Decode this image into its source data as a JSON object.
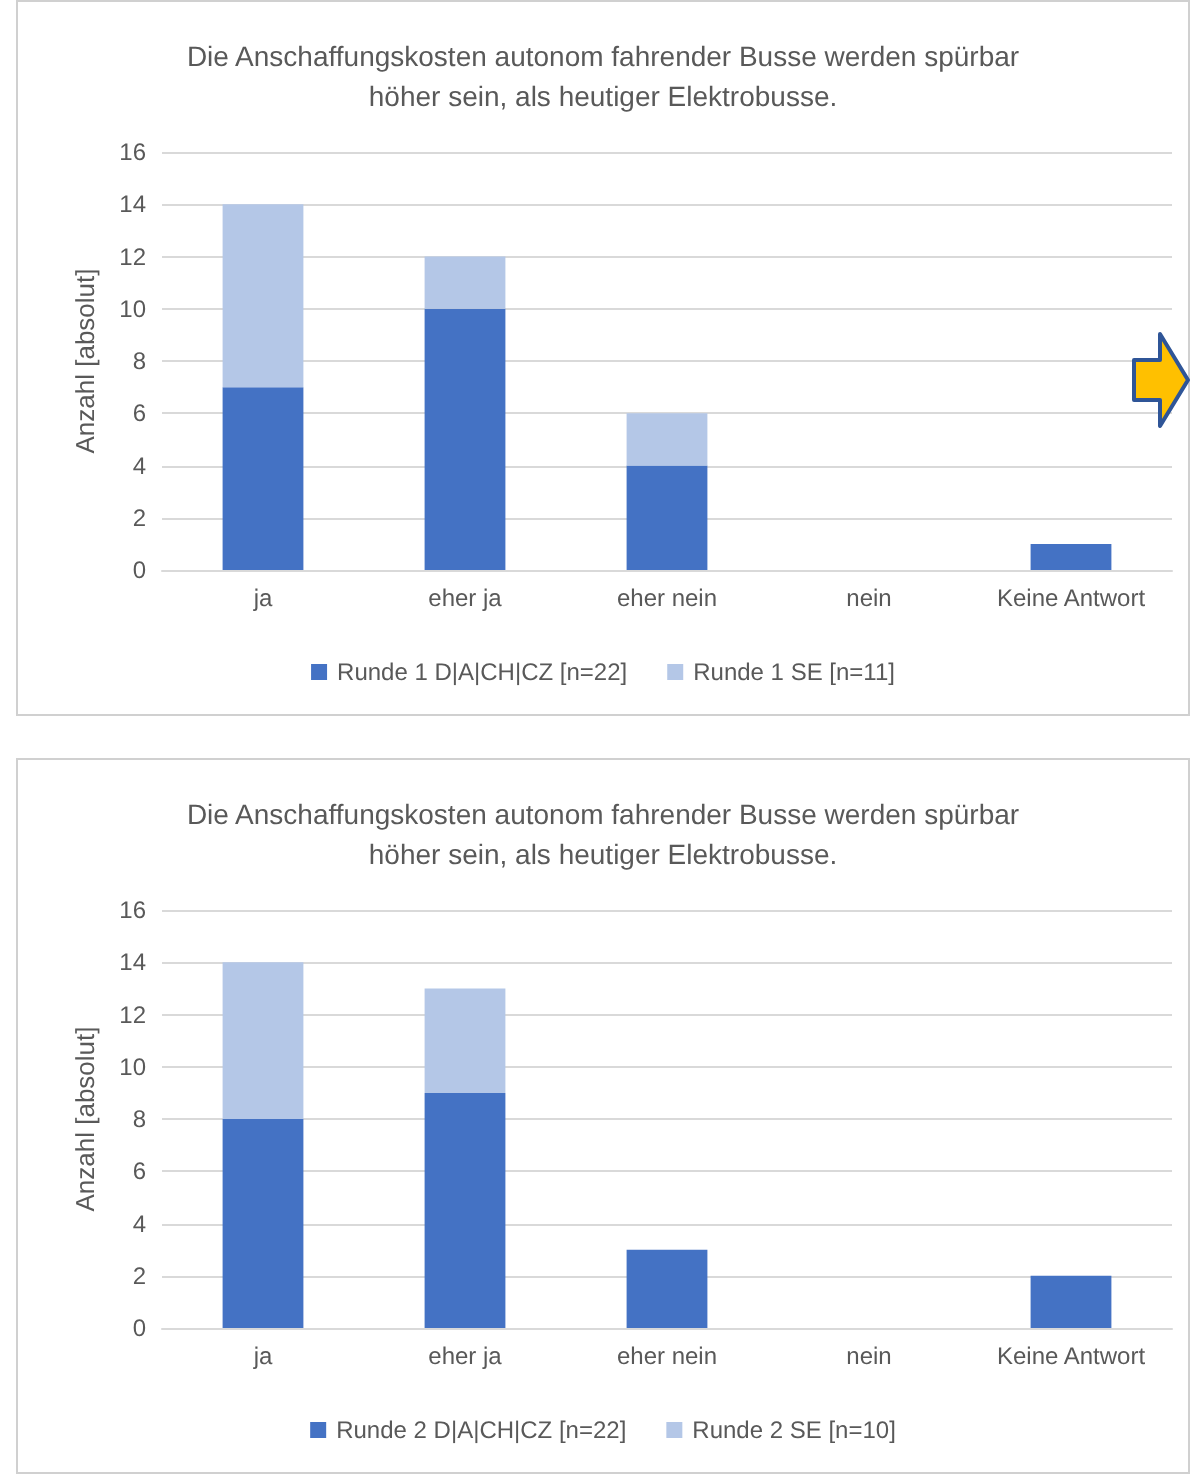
{
  "chart_data": [
    {
      "type": "bar",
      "title": "Die Anschaffungskosten autonom fahrender Busse werden spürbar\nhöher sein, als heutiger Elektrobusse.",
      "categories": [
        "ja",
        "eher ja",
        "eher nein",
        "nein",
        "Keine Antwort"
      ],
      "series": [
        {
          "name": "Runde 1 D|A|CH|CZ [n=22]",
          "color": "#4472c4",
          "values": [
            7,
            10,
            4,
            0,
            1
          ]
        },
        {
          "name": "Runde 1 SE [n=11]",
          "color": "#b4c7e7",
          "values": [
            7,
            2,
            2,
            0,
            0
          ]
        }
      ],
      "stacked": true,
      "ylabel": "Anzahl [absolut]",
      "ylim": [
        0,
        16
      ],
      "yticks": [
        0,
        2,
        4,
        6,
        8,
        10,
        12,
        14,
        16
      ],
      "grid": "y",
      "legend": "bottom"
    },
    {
      "type": "bar",
      "title": "Die Anschaffungskosten autonom fahrender Busse werden spürbar\nhöher sein, als heutiger Elektrobusse.",
      "categories": [
        "ja",
        "eher ja",
        "eher nein",
        "nein",
        "Keine Antwort"
      ],
      "series": [
        {
          "name": "Runde 2 D|A|CH|CZ [n=22]",
          "color": "#4472c4",
          "values": [
            8,
            9,
            3,
            0,
            2
          ]
        },
        {
          "name": "Runde 2 SE [n=10]",
          "color": "#b4c7e7",
          "values": [
            6,
            4,
            0,
            0,
            0
          ]
        }
      ],
      "stacked": true,
      "ylabel": "Anzahl [absolut]",
      "ylim": [
        0,
        16
      ],
      "yticks": [
        0,
        2,
        4,
        6,
        8,
        10,
        12,
        14,
        16
      ],
      "grid": "y",
      "legend": "bottom"
    }
  ]
}
